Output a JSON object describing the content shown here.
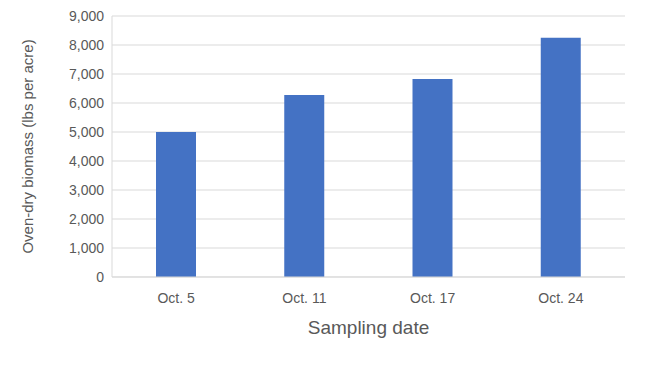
{
  "chart_data": {
    "type": "bar",
    "x_label": "Sampling date",
    "y_label": "Oven-dry biomass (lbs per acre)",
    "categories": [
      "Oct. 5",
      "Oct. 11",
      "Oct. 17",
      "Oct. 24"
    ],
    "values": [
      5000,
      6280,
      6830,
      8250
    ],
    "color": "#4472c4",
    "ylim": [
      0,
      9000
    ],
    "yticks": [
      0,
      {
        "value": 1000,
        "label": "1,000"
      },
      {
        "value": 2000,
        "label": "2,000"
      },
      {
        "value": 3000,
        "label": "3,000"
      },
      {
        "value": 4000,
        "label": "4,000"
      },
      {
        "value": 5000,
        "label": "5,000"
      },
      {
        "value": 6000,
        "label": "6,000"
      },
      {
        "value": 7000,
        "label": "7,000"
      },
      {
        "value": 8000,
        "label": "8,000"
      },
      {
        "value": 9000,
        "label": "9,000"
      }
    ],
    "grid": true
  }
}
